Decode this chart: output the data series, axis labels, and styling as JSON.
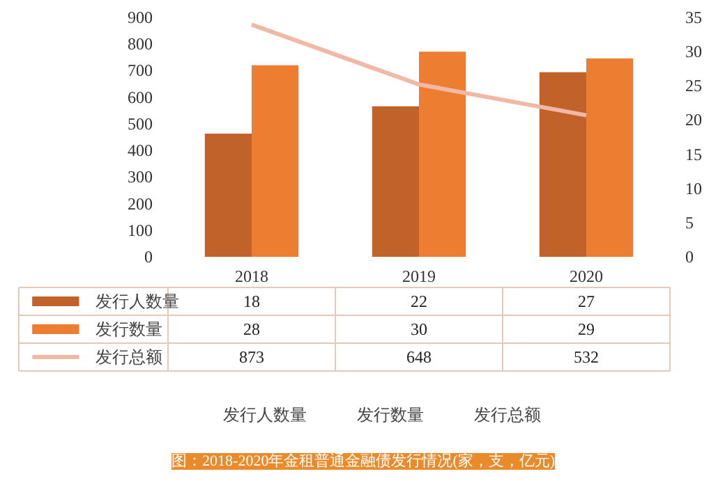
{
  "chart_data": {
    "type": "bar",
    "categories": [
      "2018",
      "2019",
      "2020"
    ],
    "series": [
      {
        "name": "发行人数量",
        "color": "#c0622a",
        "values": [
          18,
          22,
          27
        ],
        "axis": "y2"
      },
      {
        "name": "发行数量",
        "color": "#ed7d31",
        "values": [
          28,
          30,
          29
        ],
        "axis": "y2"
      },
      {
        "name": "发行总额",
        "type": "line",
        "color": "#f2b8a6",
        "values": [
          873,
          648,
          532
        ]
      }
    ],
    "ylim": [
      0,
      900
    ],
    "yticks": [
      0,
      100,
      200,
      300,
      400,
      500,
      600,
      700,
      800,
      900
    ],
    "y2lim": [
      0,
      35
    ],
    "y2ticks": [
      0,
      5,
      10,
      15,
      20,
      25,
      30,
      35
    ],
    "data_labels": true,
    "legend": "bottom",
    "grid": false,
    "marker": "none",
    "line_style": "solid",
    "annotations": [
      "图：2018-2020年金租普通金融债发行情况(家，支，亿元)"
    ]
  }
}
